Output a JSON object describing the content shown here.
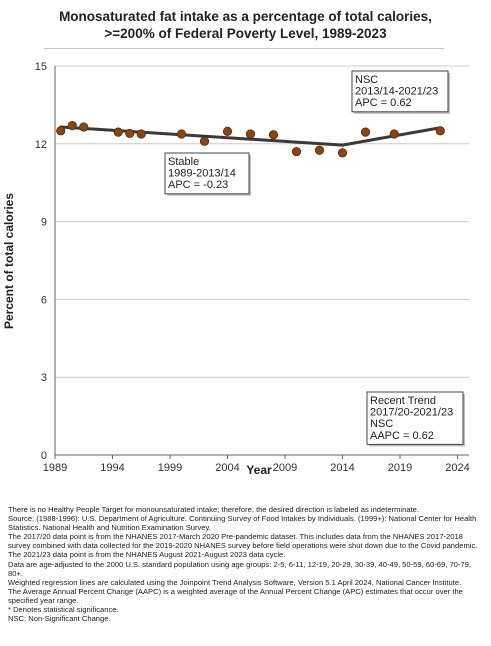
{
  "chart_data": {
    "type": "scatter",
    "title_lines": [
      "Monosaturated fat intake as a percentage of total calories,",
      ">=200% of Federal Poverty Level,  1989-2023"
    ],
    "xlabel": "Year",
    "ylabel": "Percent of total calories",
    "xlim": [
      1989,
      2025
    ],
    "ylim": [
      0,
      15
    ],
    "x_ticks": [
      1989,
      1994,
      1999,
      2004,
      2009,
      2014,
      2019,
      2024
    ],
    "y_ticks": [
      0,
      3,
      6,
      9,
      12,
      15
    ],
    "grid": "horizontal",
    "points": [
      {
        "x": 1989.5,
        "y": 12.5
      },
      {
        "x": 1990.5,
        "y": 12.7
      },
      {
        "x": 1991.5,
        "y": 12.65
      },
      {
        "x": 1994.5,
        "y": 12.45
      },
      {
        "x": 1995.5,
        "y": 12.4
      },
      {
        "x": 1996.5,
        "y": 12.38
      },
      {
        "x": 2000,
        "y": 12.38
      },
      {
        "x": 2002,
        "y": 12.1
      },
      {
        "x": 2004,
        "y": 12.48
      },
      {
        "x": 2006,
        "y": 12.38
      },
      {
        "x": 2008,
        "y": 12.35
      },
      {
        "x": 2010,
        "y": 11.7
      },
      {
        "x": 2012,
        "y": 11.75
      },
      {
        "x": 2014,
        "y": 11.65
      },
      {
        "x": 2016,
        "y": 12.45
      },
      {
        "x": 2018.5,
        "y": 12.38
      },
      {
        "x": 2022.5,
        "y": 12.5
      }
    ],
    "trend_segments": [
      {
        "x": [
          1989.5,
          2014
        ],
        "y": [
          12.65,
          11.95
        ]
      },
      {
        "x": [
          2014,
          2022.5
        ],
        "y": [
          11.95,
          12.62
        ]
      }
    ],
    "colors": {
      "point": "#8B4513",
      "trend": "#3a3a3a",
      "grid": "#cccccc",
      "axis": "#666666"
    },
    "annotations": [
      {
        "id": "stable",
        "lines": [
          "Stable",
          "1989-2013/14",
          "APC = -0.23"
        ]
      },
      {
        "id": "nsc-late",
        "lines": [
          "NSC",
          "2013/14-2021/23",
          "APC =  0.62"
        ]
      },
      {
        "id": "recent-trend",
        "lines": [
          "Recent Trend",
          "2017/20-2021/23",
          "NSC",
          "AAPC =  0.62"
        ]
      }
    ]
  },
  "footnotes": [
    "There is no Healthy People Target for monounsaturated intake; therefore, the desired direction is labeled as indeterminate.",
    "Source: (1988-1996): U.S. Department of Agriculture. Continuing Survey of Food Intakes by Individuals. (1999+): National Center for Health Statistics. National Health and Nutrition Examination Survey.",
    "The 2017/20 data point is from the NHANES 2017-March 2020 Pre-pandemic dataset. This includes data from the NHANES 2017-2018 survey combined with data collected for the 2019-2020 NHANES survey before field operations were shut down due to the Covid pandemic.",
    "The 2021/23 data point is from the NHANES August 2021-August 2023 data cycle.",
    "Data are age-adjusted to the 2000 U.S. standard population using age groups: 2-5, 6-11, 12-19, 20-29, 30-39, 40-49, 50-59, 60-69, 70-79, 80+.",
    "Weighted regression lines are calculated using the Joinpoint Trend Analysis Software, Version 5.1 April 2024, National Cancer Institute.",
    "The Average Annual Percent Change (AAPC) is a weighted average of the Annual Percent Change (APC) estimates that occur over the specified year range.",
    "* Denotes statistical significance.",
    "NSC: Non-Significant Change."
  ]
}
